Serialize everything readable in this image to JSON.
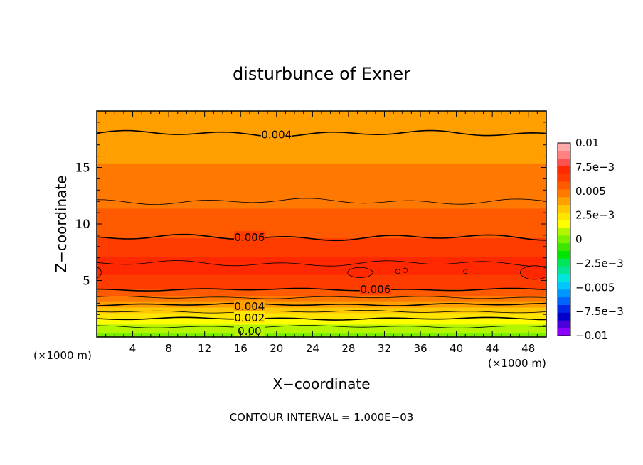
{
  "chart_data": {
    "type": "heatmap",
    "subtype": "filled-contour",
    "title": "disturbunce of Exner",
    "xlabel": "X−coordinate",
    "ylabel": "Z−coordinate",
    "x_unit": "(×1000 m)",
    "x_unit_right": "(×1000 m)",
    "xlim": [
      0,
      50
    ],
    "ylim": [
      0,
      20
    ],
    "x_ticks": [
      4,
      8,
      12,
      16,
      20,
      24,
      28,
      32,
      36,
      40,
      44,
      48
    ],
    "y_ticks": [
      5,
      10,
      15
    ],
    "footer": "CONTOUR INTERVAL = 1.000E−03",
    "contour_interval": 0.001,
    "colorbar": {
      "min": -0.01,
      "max": 0.01,
      "labels": [
        {
          "value": 0.01,
          "text": "0.01"
        },
        {
          "value": 0.0075,
          "text": "7.5e−3"
        },
        {
          "value": 0.005,
          "text": "0.005"
        },
        {
          "value": 0.0025,
          "text": "2.5e−3"
        },
        {
          "value": 0,
          "text": "0"
        },
        {
          "value": -0.0025,
          "text": "−2.5e−3"
        },
        {
          "value": -0.005,
          "text": "−0.005"
        },
        {
          "value": -0.0075,
          "text": "−7.5e−3"
        },
        {
          "value": -0.01,
          "text": "−0.01"
        }
      ],
      "colors": [
        "#8c00ff",
        "#4b00d9",
        "#0000c8",
        "#0028e6",
        "#0064ff",
        "#0096ff",
        "#00c8ff",
        "#00e6dc",
        "#00e696",
        "#00e65a",
        "#00e600",
        "#3ce600",
        "#78f000",
        "#b4f500",
        "#ffff00",
        "#ffe600",
        "#ffc800",
        "#ffa000",
        "#ff7800",
        "#ff5a00",
        "#ff3c00",
        "#ff2800",
        "#ff5050",
        "#ff8282",
        "#ffaaaa"
      ]
    },
    "contour_labels": [
      {
        "text": "0.004",
        "x": 20,
        "z": 17.9
      },
      {
        "text": "0.006",
        "x": 17,
        "z": 8.8
      },
      {
        "text": "0.006",
        "x": 31,
        "z": 4.2
      },
      {
        "text": "0.004",
        "x": 17,
        "z": 2.7
      },
      {
        "text": "0.002",
        "x": 17,
        "z": 1.7
      },
      {
        "text": "0.00",
        "x": 17,
        "z": 0.5
      }
    ],
    "profile": [
      {
        "z": 0.0,
        "value": 0.0
      },
      {
        "z": 0.5,
        "value": 0.0005
      },
      {
        "z": 1.0,
        "value": 0.0011
      },
      {
        "z": 1.5,
        "value": 0.0018
      },
      {
        "z": 2.0,
        "value": 0.0026
      },
      {
        "z": 2.5,
        "value": 0.0034
      },
      {
        "z": 3.0,
        "value": 0.0042
      },
      {
        "z": 3.5,
        "value": 0.005
      },
      {
        "z": 4.0,
        "value": 0.0058
      },
      {
        "z": 4.5,
        "value": 0.0063
      },
      {
        "z": 5.5,
        "value": 0.0068
      },
      {
        "z": 6.5,
        "value": 0.007
      },
      {
        "z": 7.5,
        "value": 0.0067
      },
      {
        "z": 8.5,
        "value": 0.0061
      },
      {
        "z": 10.0,
        "value": 0.0056
      },
      {
        "z": 12.0,
        "value": 0.005
      },
      {
        "z": 14.0,
        "value": 0.0046
      },
      {
        "z": 16.0,
        "value": 0.0043
      },
      {
        "z": 18.0,
        "value": 0.004
      },
      {
        "z": 20.0,
        "value": 0.0036
      }
    ]
  }
}
